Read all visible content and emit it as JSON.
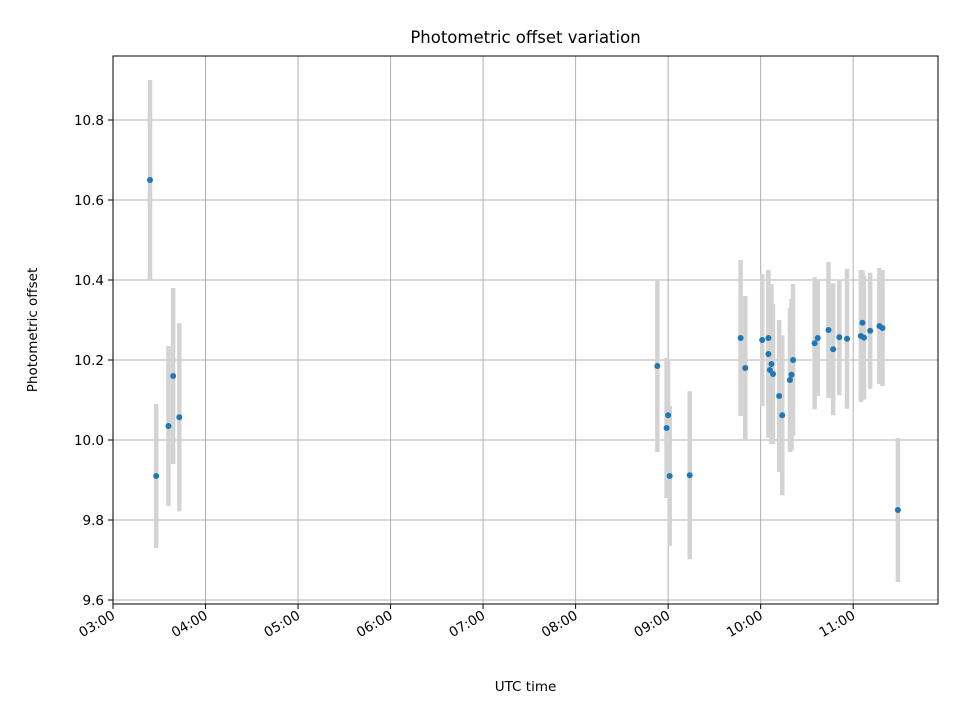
{
  "chart_data": {
    "type": "scatter",
    "title": "Photometric offset variation",
    "xlabel": "UTC time",
    "ylabel": "Photometric offset",
    "xlim": [
      "03:00",
      "11:55"
    ],
    "ylim": [
      9.59,
      10.96
    ],
    "x_ticks": [
      "03:00",
      "04:00",
      "05:00",
      "06:00",
      "07:00",
      "08:00",
      "09:00",
      "10:00",
      "11:00"
    ],
    "y_ticks": [
      9.6,
      9.8,
      10.0,
      10.2,
      10.4,
      10.6,
      10.8
    ],
    "y_tick_labels": [
      "9.6",
      "9.8",
      "10.0",
      "10.2",
      "10.4",
      "10.6",
      "10.8"
    ],
    "grid": true,
    "colors": {
      "point": "#1f77b4",
      "errorbar": "#d3d3d3",
      "grid": "#b0b0b0"
    },
    "points": [
      {
        "x": "03:24",
        "y": 10.65,
        "err": 0.25
      },
      {
        "x": "03:28",
        "y": 9.91,
        "err": 0.18
      },
      {
        "x": "03:36",
        "y": 10.035,
        "err": 0.2
      },
      {
        "x": "03:39",
        "y": 10.16,
        "err": 0.22
      },
      {
        "x": "03:43",
        "y": 10.057,
        "err": 0.235
      },
      {
        "x": "08:53",
        "y": 10.185,
        "err": 0.215
      },
      {
        "x": "08:59",
        "y": 10.03,
        "err": 0.175
      },
      {
        "x": "09:00",
        "y": 10.062,
        "err": 0.14
      },
      {
        "x": "09:01",
        "y": 9.91,
        "err": 0.175
      },
      {
        "x": "09:14",
        "y": 9.912,
        "err": 0.21
      },
      {
        "x": "09:47",
        "y": 10.255,
        "err": 0.195
      },
      {
        "x": "09:50",
        "y": 10.18,
        "err": 0.18
      },
      {
        "x": "10:01",
        "y": 10.25,
        "err": 0.165
      },
      {
        "x": "10:05",
        "y": 10.255,
        "err": 0.17
      },
      {
        "x": "10:05",
        "y": 10.215,
        "err": 0.21
      },
      {
        "x": "10:06",
        "y": 10.175,
        "err": 0.155
      },
      {
        "x": "10:07",
        "y": 10.19,
        "err": 0.2
      },
      {
        "x": "10:08",
        "y": 10.165,
        "err": 0.175
      },
      {
        "x": "10:12",
        "y": 10.11,
        "err": 0.19
      },
      {
        "x": "10:14",
        "y": 10.062,
        "err": 0.2
      },
      {
        "x": "10:19",
        "y": 10.15,
        "err": 0.18
      },
      {
        "x": "10:20",
        "y": 10.163,
        "err": 0.19
      },
      {
        "x": "10:21",
        "y": 10.2,
        "err": 0.19
      },
      {
        "x": "10:35",
        "y": 10.242,
        "err": 0.165
      },
      {
        "x": "10:37",
        "y": 10.255,
        "err": 0.145
      },
      {
        "x": "10:44",
        "y": 10.275,
        "err": 0.17
      },
      {
        "x": "10:47",
        "y": 10.227,
        "err": 0.165
      },
      {
        "x": "10:51",
        "y": 10.257,
        "err": 0.145
      },
      {
        "x": "10:56",
        "y": 10.253,
        "err": 0.175
      },
      {
        "x": "11:05",
        "y": 10.26,
        "err": 0.165
      },
      {
        "x": "11:06",
        "y": 10.293,
        "err": 0.13
      },
      {
        "x": "11:07",
        "y": 10.256,
        "err": 0.155
      },
      {
        "x": "11:11",
        "y": 10.273,
        "err": 0.145
      },
      {
        "x": "11:17",
        "y": 10.285,
        "err": 0.145
      },
      {
        "x": "11:19",
        "y": 10.28,
        "err": 0.145
      },
      {
        "x": "11:29",
        "y": 9.825,
        "err": 0.18
      }
    ]
  }
}
